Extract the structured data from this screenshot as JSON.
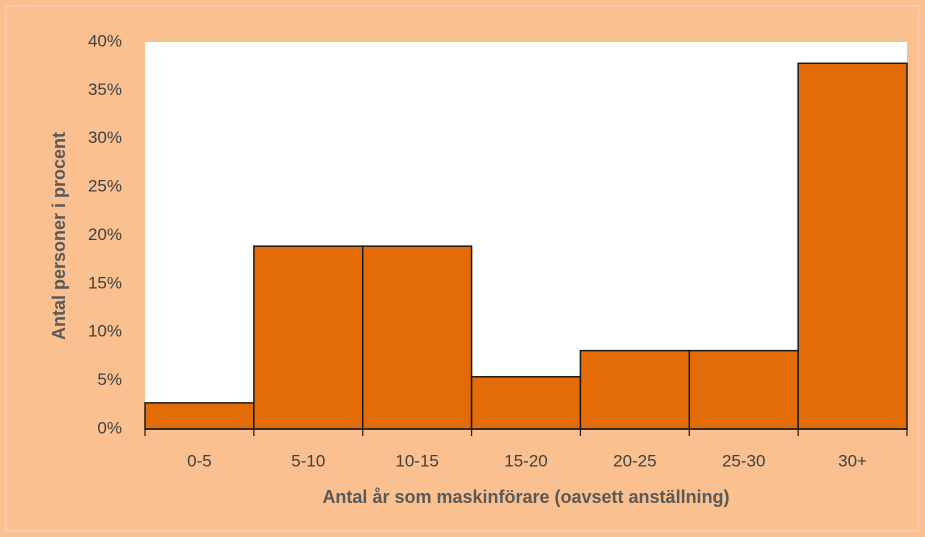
{
  "chart_data": {
    "type": "bar",
    "x_label": "Antal år som maskinförare (oavsett anställning)",
    "y_label": "Antal personer i procent",
    "categories": [
      "0-5",
      "5-10",
      "10-15",
      "15-20",
      "20-25",
      "25-30",
      "30+"
    ],
    "values": [
      2.7,
      18.9,
      18.9,
      5.4,
      8.1,
      8.1,
      37.8
    ],
    "color": "#e36c09",
    "ylim": [
      0,
      40
    ],
    "yticks": [
      {
        "value": 0,
        "label": "0%"
      },
      {
        "value": 5,
        "label": "5%"
      },
      {
        "value": 10,
        "label": "10%"
      },
      {
        "value": 15,
        "label": "15%"
      },
      {
        "value": 20,
        "label": "20%"
      },
      {
        "value": 25,
        "label": "25%"
      },
      {
        "value": 30,
        "label": "30%"
      },
      {
        "value": 35,
        "label": "35%"
      },
      {
        "value": 40,
        "label": "40%"
      }
    ],
    "grid": false
  }
}
